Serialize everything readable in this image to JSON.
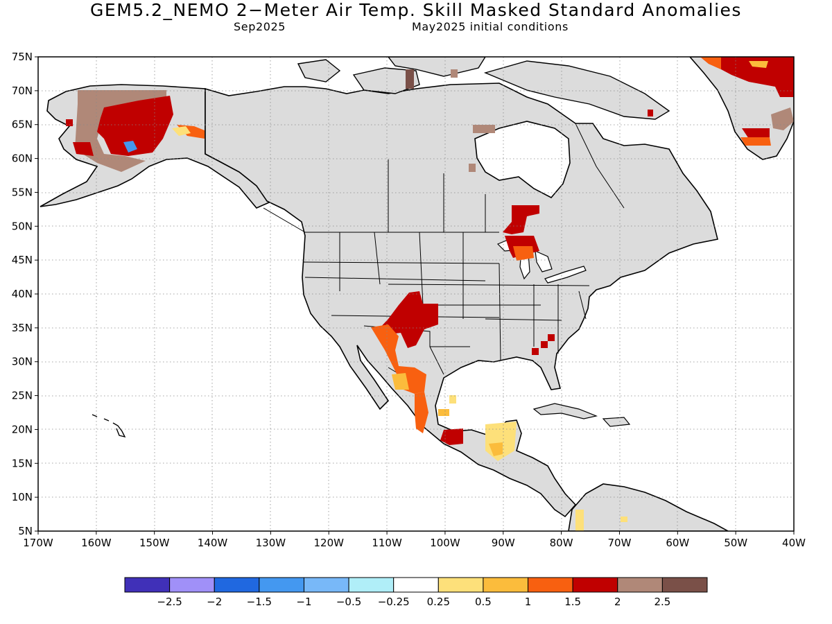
{
  "title": "GEM5.2_NEMO 2−Meter Air Temp. Skill Masked Standard Anomalies",
  "subtitle_left": "Sep2025",
  "subtitle_right": "May2025 initial conditions",
  "axes": {
    "lat_labels": [
      "75N",
      "70N",
      "65N",
      "60N",
      "55N",
      "50N",
      "45N",
      "40N",
      "35N",
      "30N",
      "25N",
      "20N",
      "15N",
      "10N",
      "5N"
    ],
    "lon_labels": [
      "170W",
      "160W",
      "150W",
      "140W",
      "130W",
      "120W",
      "110W",
      "100W",
      "90W",
      "80W",
      "70W",
      "60W",
      "50W",
      "40W"
    ],
    "lat_range": [
      5,
      75
    ],
    "lon_range": [
      -170,
      -40
    ],
    "grid": true
  },
  "colorbar": {
    "labels": [
      "−2.5",
      "−2",
      "−1.5",
      "−1",
      "−0.5",
      "−0.25",
      "0.25",
      "0.5",
      "1",
      "1.5",
      "2",
      "2.5"
    ],
    "colors": [
      "#4030b8",
      "#a090f8",
      "#2068e0",
      "#4498f0",
      "#78b8f8",
      "#b0eef8",
      "#ffffff",
      "#fde07a",
      "#fbbc3c",
      "#f86010",
      "#c00000",
      "#b08878",
      "#7a5048"
    ]
  },
  "colors": {
    "land_mask": "#dcdcdc",
    "coast": "#000000"
  }
}
